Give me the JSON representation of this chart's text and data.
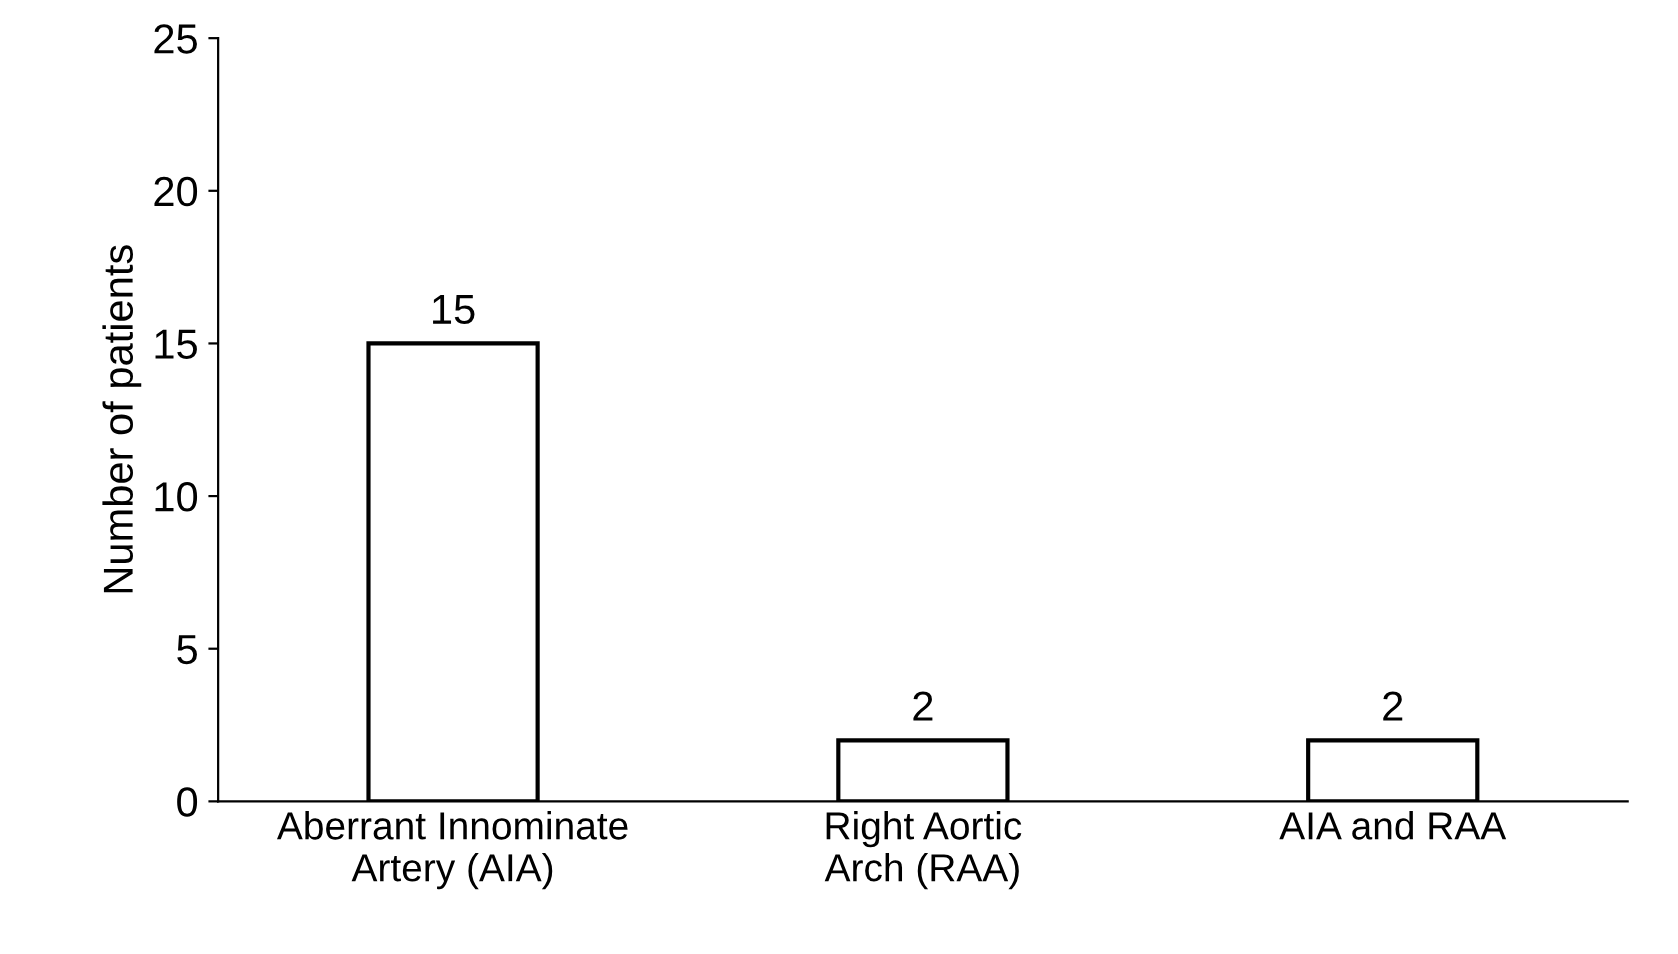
{
  "chart_data": {
    "type": "bar",
    "ylabel": "Number of patients",
    "categories": [
      "Aberrant Innominate\nArtery (AIA)",
      "Right Aortic\nArch (RAA)",
      "AIA and RAA"
    ],
    "values": [
      15,
      2,
      2
    ],
    "color": "#ffffff",
    "ylim": [
      0,
      25
    ],
    "yticks": [
      0,
      5,
      10,
      15,
      20,
      25
    ],
    "grid": false,
    "data_labels": true
  }
}
